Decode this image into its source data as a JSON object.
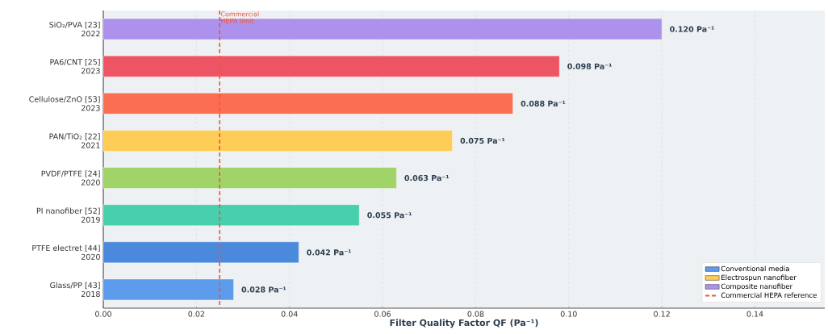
{
  "chart_data": {
    "type": "bar",
    "orientation": "horizontal",
    "xlabel": "Filter Quality Factor  QF  (Pa⁻¹)",
    "categories": [
      "SiO₂/PVA [23]\n2022",
      "PA6/CNT [25]\n2023",
      "Cellulose/ZnO [53]\n2023",
      "PAN/TiO₂ [22]\n2021",
      "PVDF/PTFE [24]\n2020",
      "PI nanofiber [52]\n2019",
      "PTFE electret [44]\n2020",
      "Glass/PP [43]\n2018"
    ],
    "series": [
      {
        "name": "Conventional media",
        "color": "#5d9cec",
        "values": [
          null,
          null,
          null,
          null,
          null,
          null,
          0.042,
          0.028
        ],
        "colors": [
          null,
          null,
          null,
          null,
          null,
          null,
          "#4a89dc",
          "#5d9cec"
        ],
        "value_labels": [
          null,
          null,
          null,
          null,
          null,
          null,
          "0.042 Pa⁻¹",
          "0.028 Pa⁻¹"
        ]
      },
      {
        "name": "Electrospun nanofiber",
        "color": "#fecd57",
        "values": [
          null,
          null,
          null,
          0.075,
          0.063,
          0.055,
          null,
          null
        ],
        "colors": [
          null,
          null,
          null,
          "#fecd57",
          "#a0d468",
          "#48cfad",
          null,
          null
        ],
        "value_labels": [
          null,
          null,
          null,
          "0.075 Pa⁻¹",
          "0.063 Pa⁻¹",
          "0.055 Pa⁻¹",
          null,
          null
        ]
      },
      {
        "name": "Composite nanofiber",
        "color": "#ac92ec",
        "values": [
          0.12,
          0.098,
          0.088,
          null,
          null,
          null,
          null,
          null
        ],
        "colors": [
          "#ac92ec",
          "#ed5565",
          "#fc6e51",
          null,
          null,
          null,
          null,
          null
        ],
        "value_labels": [
          "0.120 Pa⁻¹",
          "0.098 Pa⁻¹",
          "0.088 Pa⁻¹",
          null,
          null,
          null,
          null,
          null
        ]
      }
    ],
    "xlim": [
      0,
      0.155
    ],
    "xticks": [
      {
        "value": 0,
        "label": "0.00"
      },
      {
        "value": 0.02,
        "label": "0.02"
      },
      {
        "value": 0.04,
        "label": "0.04"
      },
      {
        "value": 0.06,
        "label": "0.06"
      },
      {
        "value": 0.08,
        "label": "0.08"
      },
      {
        "value": 0.1,
        "label": "0.10"
      },
      {
        "value": 0.12,
        "label": "0.12"
      },
      {
        "value": 0.14,
        "label": "0.14"
      }
    ],
    "ref_lines": [
      {
        "axis": "x",
        "value": 0.025,
        "label": "Commercial HEPA limit",
        "color": "#e9573f",
        "line_style": "dashed"
      }
    ],
    "annotations": [
      "Commercial HEPA reference"
    ],
    "grid": "x",
    "legend": "bottom right"
  }
}
